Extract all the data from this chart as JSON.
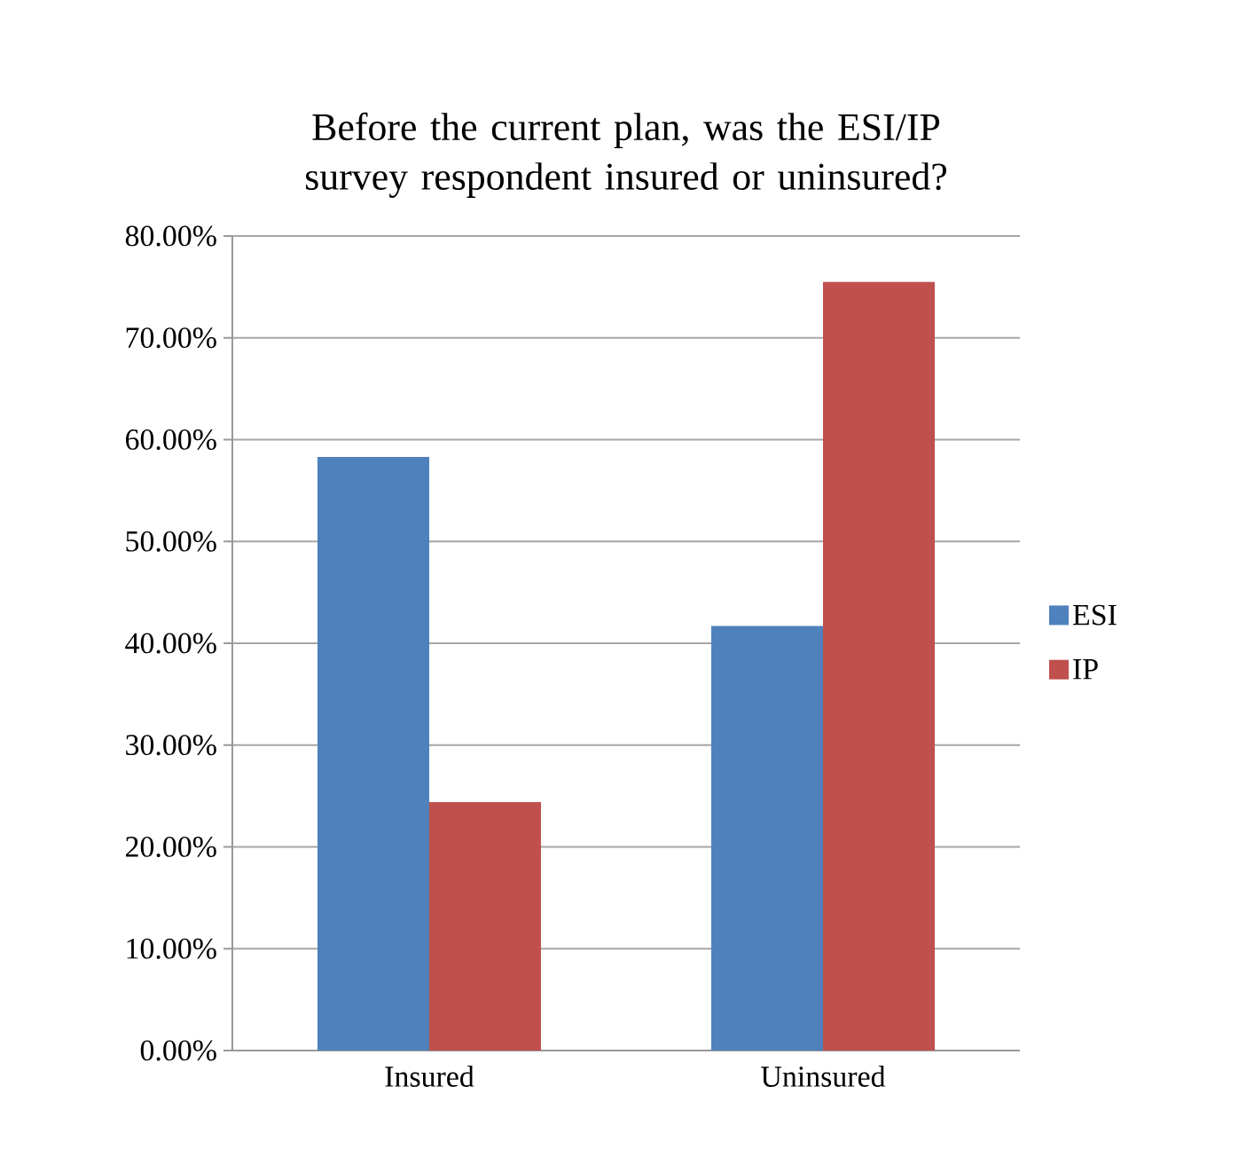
{
  "chart_data": {
    "type": "bar",
    "title": "Before the current plan, was the ESI/IP survey respondent insured or uninsured?",
    "categories": [
      "Insured",
      "Uninsured"
    ],
    "series": [
      {
        "name": "ESI",
        "color": "#4f81bd",
        "values": [
          58.3,
          41.7
        ]
      },
      {
        "name": "IP",
        "color": "#c0504d",
        "values": [
          24.4,
          75.5
        ]
      }
    ],
    "ylim": [
      0,
      80
    ],
    "yticks": [
      {
        "value": 0,
        "label": "0.00%"
      },
      {
        "value": 10,
        "label": "10.00%"
      },
      {
        "value": 20,
        "label": "20.00%"
      },
      {
        "value": 30,
        "label": "30.00%"
      },
      {
        "value": 40,
        "label": "40.00%"
      },
      {
        "value": 50,
        "label": "50.00%"
      },
      {
        "value": 60,
        "label": "60.00%"
      },
      {
        "value": 70,
        "label": "70.00%"
      },
      {
        "value": 80,
        "label": "80.00%"
      }
    ],
    "grid": "y",
    "legend": "right"
  }
}
